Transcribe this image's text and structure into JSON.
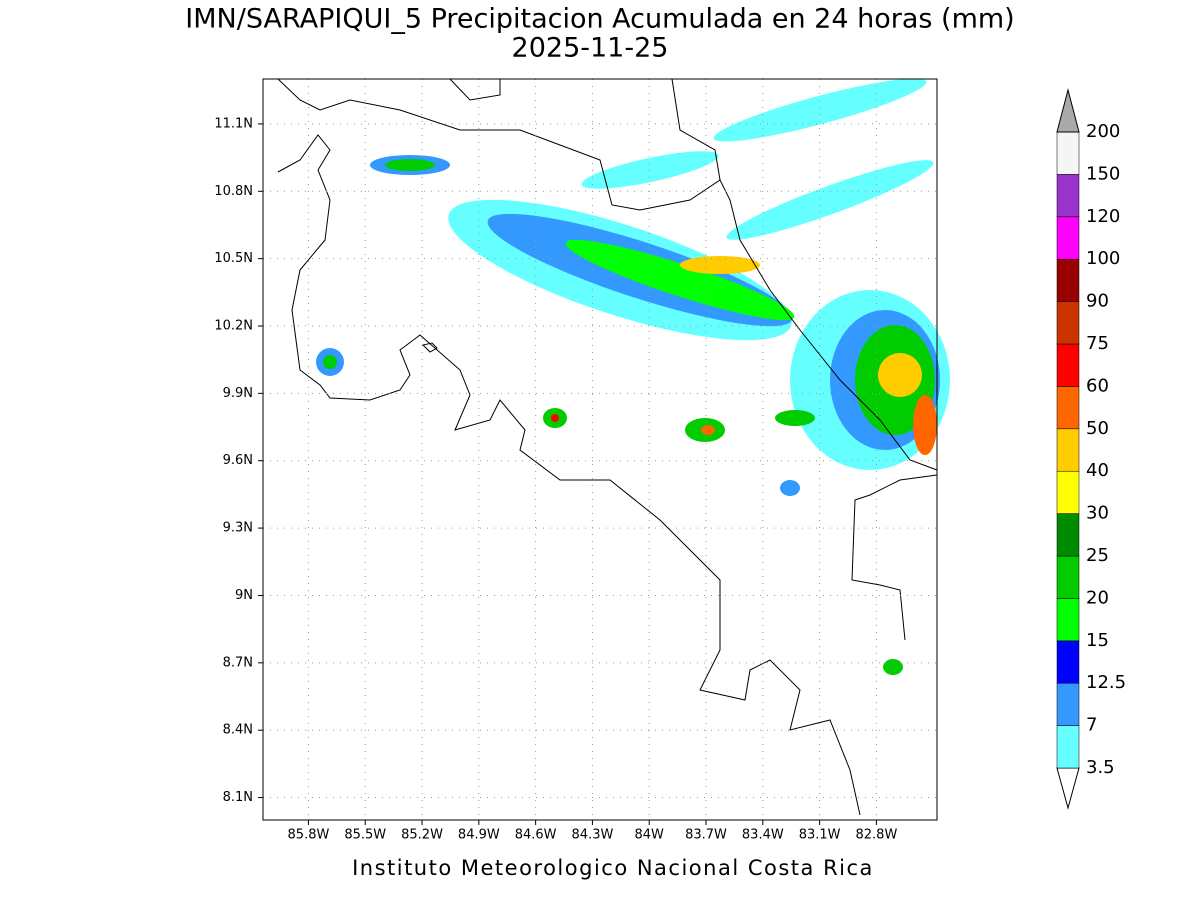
{
  "title": "IMN/SARAPIQUI_5 Precipitacion Acumulada en 24 horas (mm)",
  "subtitle": "2025-11-25",
  "footer": "Instituto Meteorologico Nacional Costa Rica",
  "map": {
    "xlim": [
      -86.04,
      -82.48
    ],
    "ylim": [
      8.0,
      11.3
    ],
    "grid": true,
    "xticks": [
      {
        "value": -85.8,
        "label": "85.8W"
      },
      {
        "value": -85.5,
        "label": "85.5W"
      },
      {
        "value": -85.2,
        "label": "85.2W"
      },
      {
        "value": -84.9,
        "label": "84.9W"
      },
      {
        "value": -84.6,
        "label": "84.6W"
      },
      {
        "value": -84.3,
        "label": "84.3W"
      },
      {
        "value": -84.0,
        "label": "84W"
      },
      {
        "value": -83.7,
        "label": "83.7W"
      },
      {
        "value": -83.4,
        "label": "83.4W"
      },
      {
        "value": -83.1,
        "label": "83.1W"
      },
      {
        "value": -82.8,
        "label": "82.8W"
      }
    ],
    "yticks": [
      {
        "value": 8.1,
        "label": "8.1N"
      },
      {
        "value": 8.4,
        "label": "8.4N"
      },
      {
        "value": 8.7,
        "label": "8.7N"
      },
      {
        "value": 9.0,
        "label": "9N"
      },
      {
        "value": 9.3,
        "label": "9.3N"
      },
      {
        "value": 9.6,
        "label": "9.6N"
      },
      {
        "value": 9.9,
        "label": "9.9N"
      },
      {
        "value": 10.2,
        "label": "10.2N"
      },
      {
        "value": 10.5,
        "label": "10.5N"
      },
      {
        "value": 10.8,
        "label": "10.8N"
      },
      {
        "value": 11.1,
        "label": "11.1N"
      }
    ]
  },
  "colorbar": {
    "levels": [
      3.5,
      7,
      12.5,
      15,
      20,
      25,
      30,
      40,
      50,
      60,
      75,
      90,
      100,
      120,
      150,
      200
    ],
    "colors": [
      "#66ffff",
      "#3399ff",
      "#0000ff",
      "#00ff00",
      "#00cc00",
      "#008c00",
      "#ffff00",
      "#ffcc00",
      "#ff6600",
      "#ff0000",
      "#cc3300",
      "#990000",
      "#ff00ff",
      "#9933cc",
      "#f5f5f5"
    ],
    "under_color": "#ffffff",
    "over_color": "#aaaaaa"
  }
}
